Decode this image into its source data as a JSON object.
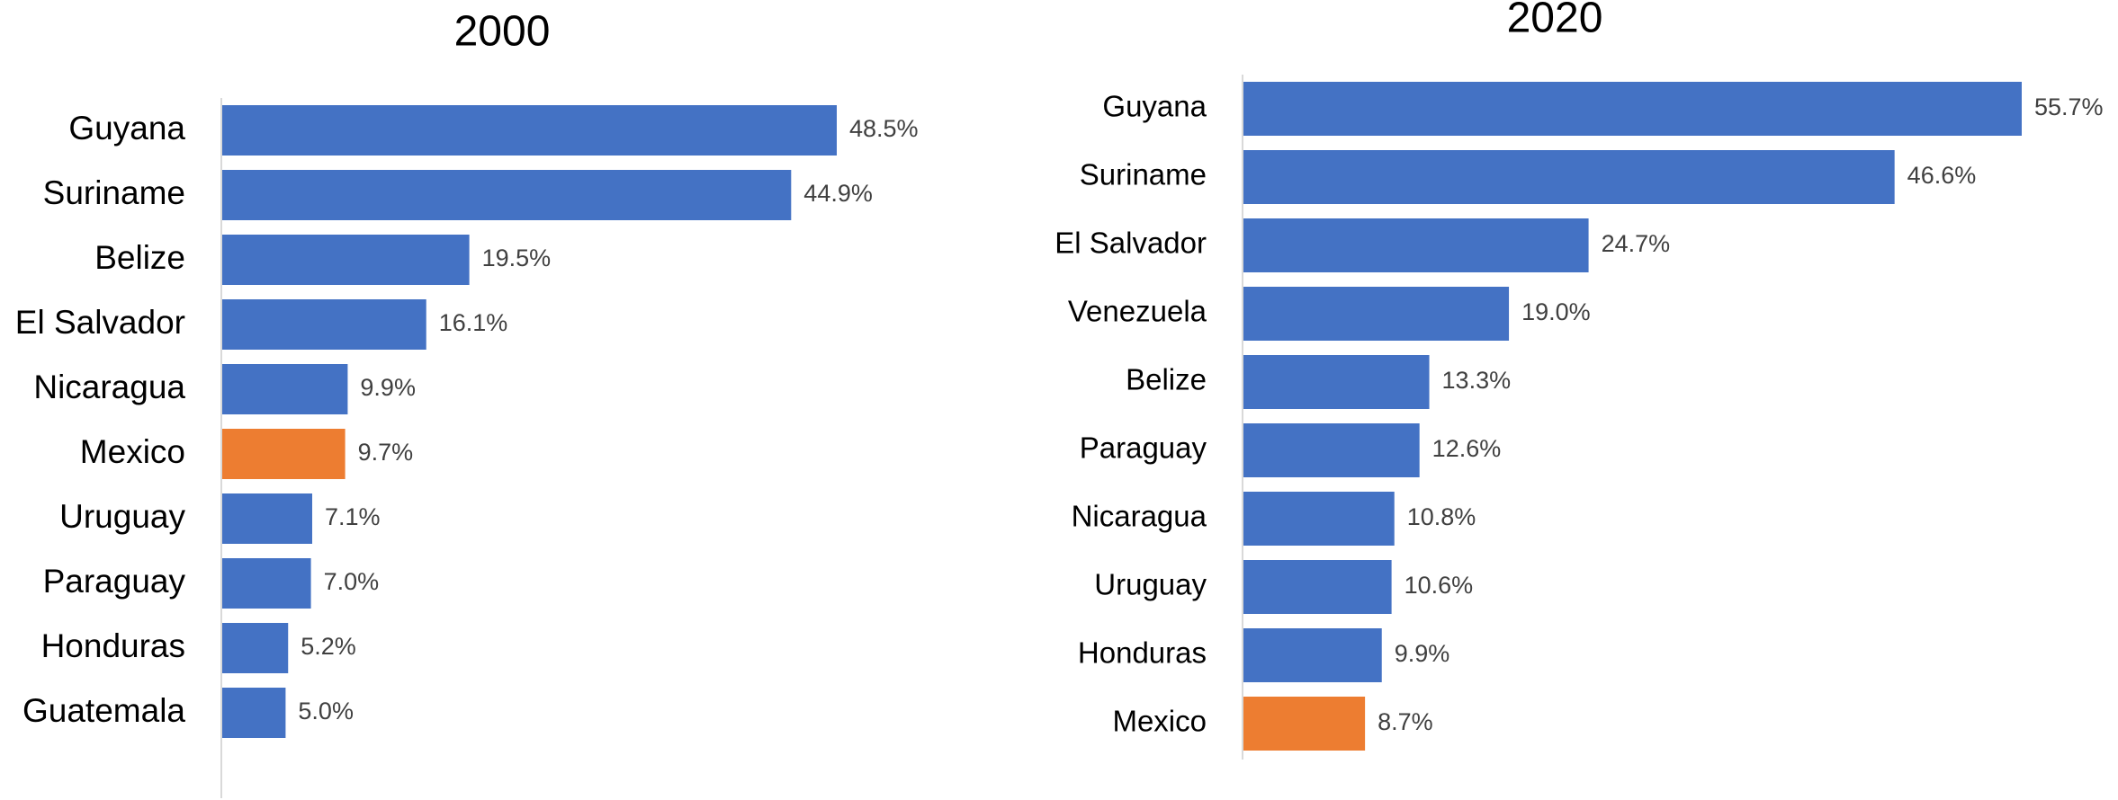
{
  "chart_data": [
    {
      "type": "bar",
      "orientation": "horizontal",
      "title": "2000",
      "categories": [
        "Guyana",
        "Suriname",
        "Belize",
        "El Salvador",
        "Nicaragua",
        "Mexico",
        "Uruguay",
        "Paraguay",
        "Honduras",
        "Guatemala"
      ],
      "values": [
        48.5,
        44.9,
        19.5,
        16.1,
        9.9,
        9.7,
        7.1,
        7.0,
        5.2,
        5.0
      ],
      "value_labels": [
        "48.5%",
        "44.9%",
        "19.5%",
        "16.1%",
        "9.9%",
        "9.7%",
        "7.1%",
        "7.0%",
        "5.2%",
        "5.0%"
      ],
      "colors": [
        "#4472c4",
        "#4472c4",
        "#4472c4",
        "#4472c4",
        "#4472c4",
        "#ed7d31",
        "#4472c4",
        "#4472c4",
        "#4472c4",
        "#4472c4"
      ]
    },
    {
      "type": "bar",
      "orientation": "horizontal",
      "title": "2020",
      "categories": [
        "Guyana",
        "Suriname",
        "El Salvador",
        "Venezuela",
        "Belize",
        "Paraguay",
        "Nicaragua",
        "Uruguay",
        "Honduras",
        "Mexico"
      ],
      "values": [
        55.7,
        46.6,
        24.7,
        19.0,
        13.3,
        12.6,
        10.8,
        10.6,
        9.9,
        8.7
      ],
      "value_labels": [
        "55.7%",
        "46.6%",
        "24.7%",
        "19.0%",
        "13.3%",
        "12.6%",
        "10.8%",
        "10.6%",
        "9.9%",
        "8.7%"
      ],
      "colors": [
        "#4472c4",
        "#4472c4",
        "#4472c4",
        "#4472c4",
        "#4472c4",
        "#4472c4",
        "#4472c4",
        "#4472c4",
        "#4472c4",
        "#ed7d31"
      ]
    }
  ]
}
